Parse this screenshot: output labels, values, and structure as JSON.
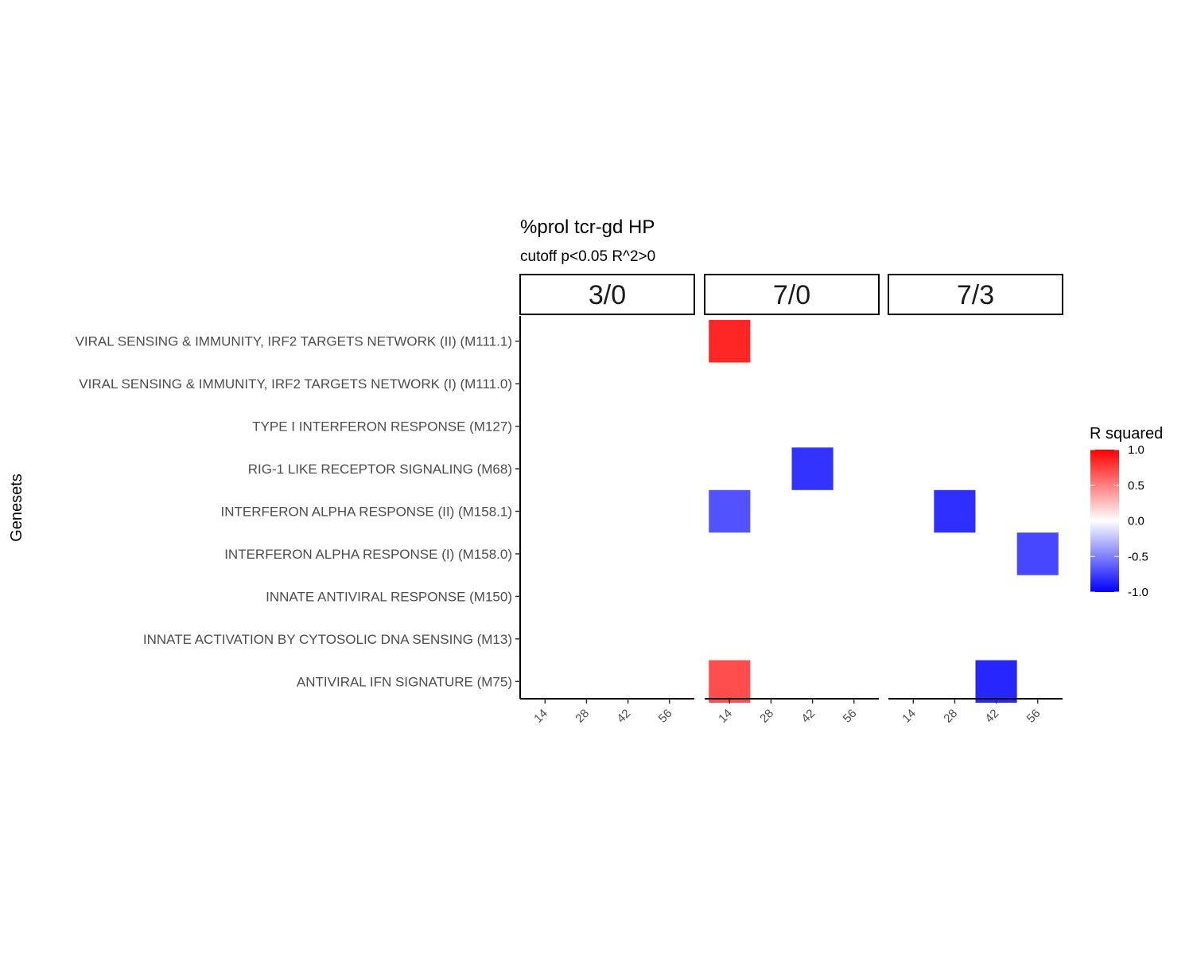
{
  "chart_data": {
    "type": "heatmap",
    "title": "%prol tcr-gd HP",
    "subtitle": "cutoff p<0.05 R^2>0",
    "ylabel": "Genesets",
    "xlabel": "",
    "facets": [
      "3/0",
      "7/0",
      "7/3"
    ],
    "x": [
      "14",
      "28",
      "42",
      "56"
    ],
    "y": [
      "VIRAL SENSING & IMMUNITY,  IRF2 TARGETS NETWORK (II) (M111.1)",
      "VIRAL SENSING & IMMUNITY,  IRF2 TARGETS NETWORK (I) (M111.0)",
      "TYPE I INTERFERON RESPONSE (M127)",
      "RIG-1 LIKE RECEPTOR SIGNALING (M68)",
      "INTERFERON ALPHA RESPONSE (II) (M158.1)",
      "INTERFERON ALPHA RESPONSE (I) (M158.0)",
      "INNATE ANTIVIRAL RESPONSE (M150)",
      "INNATE ACTIVATION BY CYTOSOLIC DNA SENSING (M13)",
      "ANTIVIRAL IFN SIGNATURE (M75)"
    ],
    "cells": [
      {
        "facet": "7/0",
        "x": "14",
        "y": "VIRAL SENSING & IMMUNITY,  IRF2 TARGETS NETWORK (II) (M111.1)",
        "value": 0.85
      },
      {
        "facet": "7/0",
        "x": "42",
        "y": "RIG-1 LIKE RECEPTOR SIGNALING (M68)",
        "value": -0.8
      },
      {
        "facet": "7/0",
        "x": "14",
        "y": "INTERFERON ALPHA RESPONSE (II) (M158.1)",
        "value": -0.68
      },
      {
        "facet": "7/0",
        "x": "14",
        "y": "ANTIVIRAL IFN SIGNATURE (M75)",
        "value": 0.7
      },
      {
        "facet": "7/3",
        "x": "28",
        "y": "INTERFERON ALPHA RESPONSE (II) (M158.1)",
        "value": -0.82
      },
      {
        "facet": "7/3",
        "x": "56",
        "y": "INTERFERON ALPHA RESPONSE (I) (M158.0)",
        "value": -0.72
      },
      {
        "facet": "7/3",
        "x": "42",
        "y": "ANTIVIRAL IFN SIGNATURE (M75)",
        "value": -0.85
      }
    ],
    "legend": {
      "title": "R squared",
      "range": [
        -1.0,
        1.0
      ],
      "ticks": [
        "1.0",
        "0.5",
        "0.0",
        "-0.5",
        "-1.0"
      ],
      "tick_values": [
        1.0,
        0.5,
        0.0,
        -0.5,
        -1.0
      ],
      "low_color": "#0000ff",
      "mid_color": "#ffffff",
      "high_color": "#ff0000",
      "position": "right"
    },
    "grid": false
  }
}
